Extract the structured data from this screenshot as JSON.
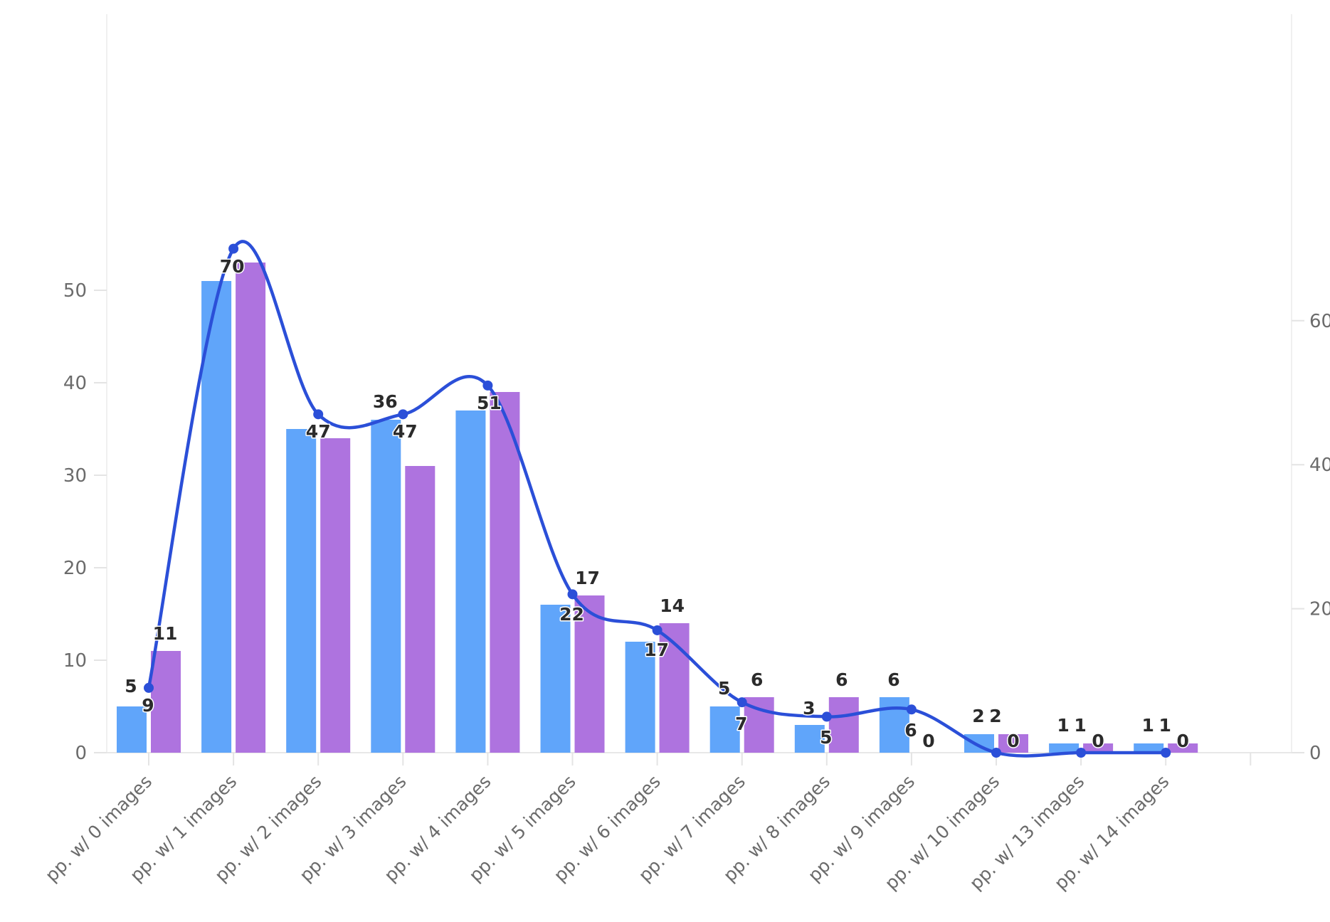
{
  "chart_data": {
    "type": "bar",
    "categories": [
      "pp. w/ 0 images",
      "pp. w/ 1 images",
      "pp. w/ 2 images",
      "pp. w/ 3 images",
      "pp. w/ 4 images",
      "pp. w/ 5 images",
      "pp. w/ 6 images",
      "pp. w/ 7 images",
      "pp. w/ 8 images",
      "pp. w/ 9 images",
      "pp. w/ 10 images",
      "pp. w/ 13 images",
      "pp. w/ 14 images"
    ],
    "series": [
      {
        "type": "bar",
        "axis": "left",
        "color": "#60a5fa",
        "values": [
          5,
          51,
          35,
          36,
          37,
          16,
          12,
          5,
          3,
          6,
          2,
          1,
          1
        ]
      },
      {
        "type": "bar",
        "axis": "left",
        "color": "#ae73df",
        "values": [
          11,
          53,
          34,
          31,
          39,
          17,
          14,
          6,
          6,
          0,
          2,
          1,
          1
        ]
      },
      {
        "type": "line",
        "axis": "right",
        "smooth": true,
        "color": "#2b4fd8",
        "values": [
          9,
          70,
          47,
          47,
          51,
          22,
          17,
          7,
          5,
          6,
          0,
          0,
          0
        ]
      }
    ],
    "data_labels": [
      [
        "5",
        "9",
        "11"
      ],
      [
        "70"
      ],
      [
        "47"
      ],
      [
        "36",
        "47"
      ],
      [
        "51"
      ],
      [
        "22",
        "17"
      ],
      [
        "17",
        "14"
      ],
      [
        "5",
        "7",
        "6"
      ],
      [
        "3",
        "5",
        "6"
      ],
      [
        "6",
        "6",
        "0"
      ],
      [
        "2",
        "2",
        "0"
      ],
      [
        "1",
        "1",
        "0"
      ],
      [
        "1",
        "1",
        "0"
      ]
    ],
    "y_left": {
      "ticks": [
        "0",
        "10",
        "20",
        "30",
        "40",
        "50"
      ],
      "ylim": [
        0,
        70
      ]
    },
    "y_right": {
      "ticks": [
        "0",
        "20",
        "40",
        "60"
      ],
      "ylim": [
        0,
        90
      ]
    },
    "title": "",
    "xlabel": "",
    "ylabel": "",
    "grid": false,
    "legend": "none"
  }
}
